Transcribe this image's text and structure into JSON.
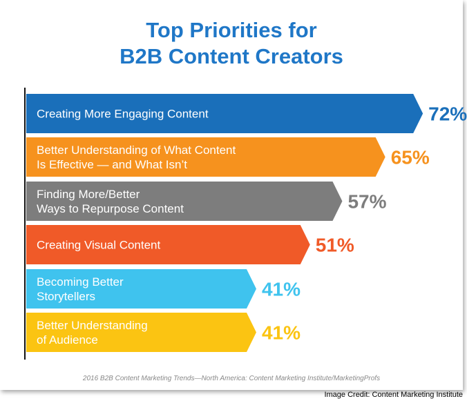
{
  "chart_data": {
    "type": "bar",
    "orientation": "horizontal",
    "title_lines": [
      "Top Priorities for",
      "B2B Content Creators"
    ],
    "categories": [
      [
        "Creating More Engaging Content"
      ],
      [
        "Better Understanding of What Content",
        "Is Effective — and What Isn’t"
      ],
      [
        "Finding More/Better",
        "Ways to Repurpose Content"
      ],
      [
        "Creating Visual Content"
      ],
      [
        "Becoming Better",
        "Storytellers"
      ],
      [
        "Better Understanding",
        "of Audience"
      ]
    ],
    "values": [
      72,
      65,
      57,
      51,
      41,
      41
    ],
    "value_labels": [
      "72%",
      "65%",
      "57%",
      "51%",
      "41%",
      "41%"
    ],
    "colors": [
      "#1a6fba",
      "#f6921e",
      "#7d7d7d",
      "#f05a28",
      "#3fc3ee",
      "#fbc412"
    ],
    "value_colors": [
      "#1a6fba",
      "#f6921e",
      "#7d7d7d",
      "#f05a28",
      "#3fc3ee",
      "#fbc412"
    ],
    "value_axis_max": 100,
    "grid": false,
    "legend": "none"
  },
  "source": "2016 B2B Content Marketing Trends—North America: Content Marketing Institute/MarketingProfs",
  "credit": "Image Credit: Content Marketing Institute"
}
